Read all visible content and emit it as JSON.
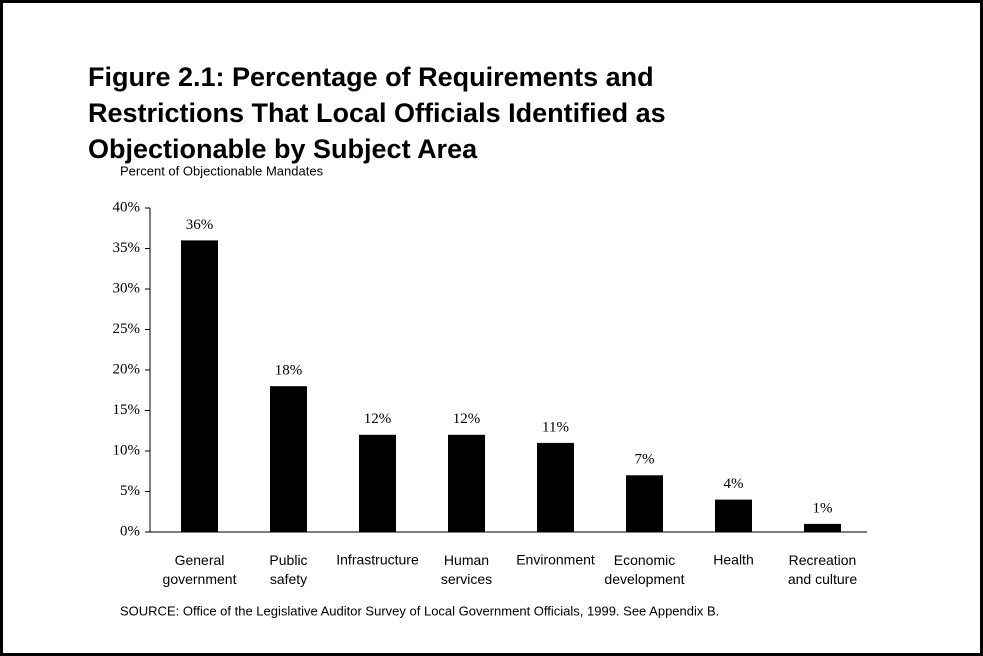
{
  "chart_data": {
    "type": "bar",
    "title": "Figure 2.1:  Percentage of Requirements and\nRestrictions That Local Officials Identified as\nObjectionable by Subject Area",
    "y_axis_label": "Percent of Objectionable Mandates",
    "categories": [
      "General\ngovernment",
      "Public\nsafety",
      "Infrastructure",
      "Human\nservices",
      "Environment",
      "Economic\ndevelopment",
      "Health",
      "Recreation\nand culture"
    ],
    "values": [
      36,
      18,
      12,
      12,
      11,
      7,
      4,
      1
    ],
    "value_labels": [
      "36%",
      "18%",
      "12%",
      "12%",
      "11%",
      "7%",
      "4%",
      "1%"
    ],
    "color": "#000000",
    "ylim": [
      0,
      40
    ],
    "yticks": [
      {
        "value": 0,
        "label": "0%"
      },
      {
        "value": 5,
        "label": "5%"
      },
      {
        "value": 10,
        "label": "10%"
      },
      {
        "value": 15,
        "label": "15%"
      },
      {
        "value": 20,
        "label": "20%"
      },
      {
        "value": 25,
        "label": "25%"
      },
      {
        "value": 30,
        "label": "30%"
      },
      {
        "value": 35,
        "label": "35%"
      },
      {
        "value": 40,
        "label": "40%"
      }
    ],
    "grid": false,
    "source": "SOURCE:  Office of the Legislative Auditor Survey of Local Government Officials, 1999.  See Appendix B."
  }
}
